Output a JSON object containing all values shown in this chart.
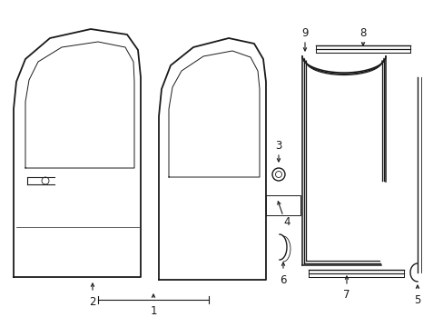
{
  "bg_color": "#ffffff",
  "line_color": "#1a1a1a",
  "lw": 1.0,
  "fs": 8.5,
  "fig_w": 4.89,
  "fig_h": 3.6,
  "dpi": 100
}
